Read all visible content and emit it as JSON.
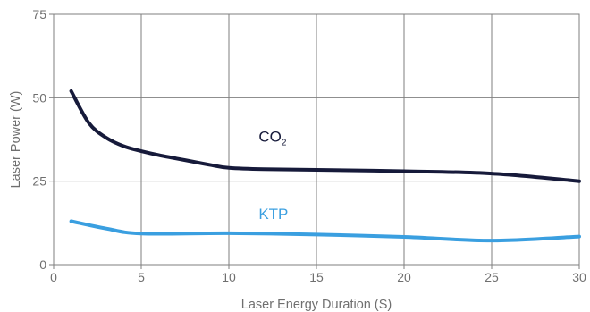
{
  "chart_data": {
    "type": "line",
    "xlabel": "Laser Energy Duration (S)",
    "ylabel": "Laser Power (W)",
    "xlim": [
      0,
      30
    ],
    "ylim": [
      0,
      75
    ],
    "x_ticks": [
      "0",
      "5",
      "10",
      "15",
      "20",
      "25",
      "30"
    ],
    "y_ticks": [
      "0",
      "25",
      "50",
      "75"
    ],
    "x_tick_values": [
      0,
      5,
      10,
      15,
      20,
      25,
      30
    ],
    "y_tick_values": [
      0,
      25,
      50,
      75
    ],
    "grid": true,
    "series": [
      {
        "name": "CO",
        "name_subscript": "2",
        "color": "#161a3a",
        "x": [
          1,
          2,
          3,
          4,
          5,
          6,
          7,
          8,
          9,
          10,
          12,
          15,
          20,
          25,
          30
        ],
        "y": [
          52,
          42.5,
          38,
          35.5,
          34,
          32.8,
          31.8,
          30.8,
          29.8,
          29,
          28.6,
          28.4,
          28,
          27.3,
          25
        ]
      },
      {
        "name": "KTP",
        "color": "#3a9fe0",
        "x": [
          1,
          3,
          5,
          10,
          15,
          20,
          25,
          30
        ],
        "y": [
          13,
          10.8,
          9.3,
          9.4,
          9,
          8.3,
          7.2,
          8.4
        ]
      }
    ]
  }
}
